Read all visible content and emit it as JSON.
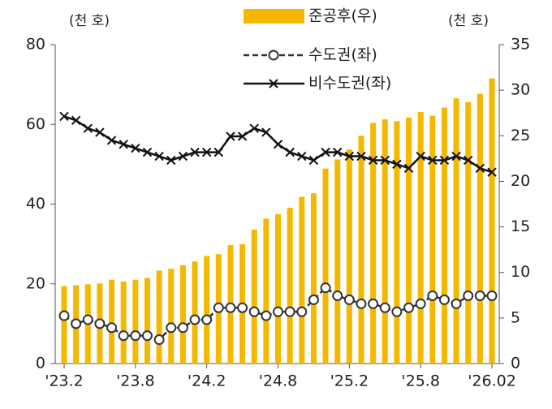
{
  "chart_data": {
    "type": "bar_line",
    "categories": [
      "'23.2",
      null,
      null,
      null,
      null,
      null,
      "'23.8",
      null,
      null,
      null,
      null,
      null,
      "'24.2",
      null,
      null,
      null,
      null,
      null,
      "'24.8",
      null,
      null,
      null,
      null,
      null,
      "'25.2",
      null,
      null,
      null,
      null,
      null,
      "'25.8",
      null,
      null,
      null,
      null,
      null,
      "'26.02"
    ],
    "ylabel": "(천 호)",
    "y2label": "(천 호)",
    "ylim": [
      0,
      80
    ],
    "yticks": [
      0,
      20,
      40,
      60,
      80
    ],
    "y2lim": [
      0,
      35
    ],
    "y2ticks": [
      0,
      5,
      10,
      15,
      20,
      25,
      30,
      35
    ],
    "series": [
      {
        "name": "준공후(우)",
        "type": "bar",
        "axis": "y2",
        "color": "#f5b800",
        "values": [
          8.5,
          8.6,
          8.7,
          8.8,
          9.2,
          9.0,
          9.2,
          9.4,
          10.2,
          10.4,
          10.8,
          11.2,
          11.8,
          12.0,
          13.0,
          13.1,
          14.7,
          15.9,
          16.4,
          17.1,
          18.3,
          18.7,
          21.4,
          22.4,
          23.5,
          25.0,
          26.4,
          26.8,
          26.6,
          27.0,
          27.6,
          27.2,
          28.1,
          29.1,
          28.7,
          29.6,
          31.3
        ]
      },
      {
        "name": "수도권(좌)",
        "type": "line",
        "axis": "y",
        "color": "#333333",
        "linestyle": "dashed",
        "marker": "o",
        "values": [
          12,
          10,
          11,
          10,
          9,
          7,
          7,
          7,
          6,
          9,
          9,
          11,
          11,
          14,
          14,
          14,
          13,
          12,
          13,
          13,
          13,
          16,
          19,
          17,
          16,
          15,
          15,
          14,
          13,
          14,
          15,
          17,
          16,
          15,
          17,
          17,
          17
        ]
      },
      {
        "name": "비수도권(좌)",
        "type": "line",
        "axis": "y",
        "color": "#111111",
        "linestyle": "solid",
        "marker": "x",
        "values": [
          62,
          61,
          59,
          58,
          56,
          55,
          54,
          53,
          52,
          51,
          52,
          53,
          53,
          53,
          57,
          57,
          59,
          58,
          55,
          53,
          52,
          51,
          53,
          53,
          52,
          52,
          51,
          51,
          50,
          49,
          52,
          51,
          51,
          52,
          51,
          49,
          48
        ]
      }
    ]
  }
}
